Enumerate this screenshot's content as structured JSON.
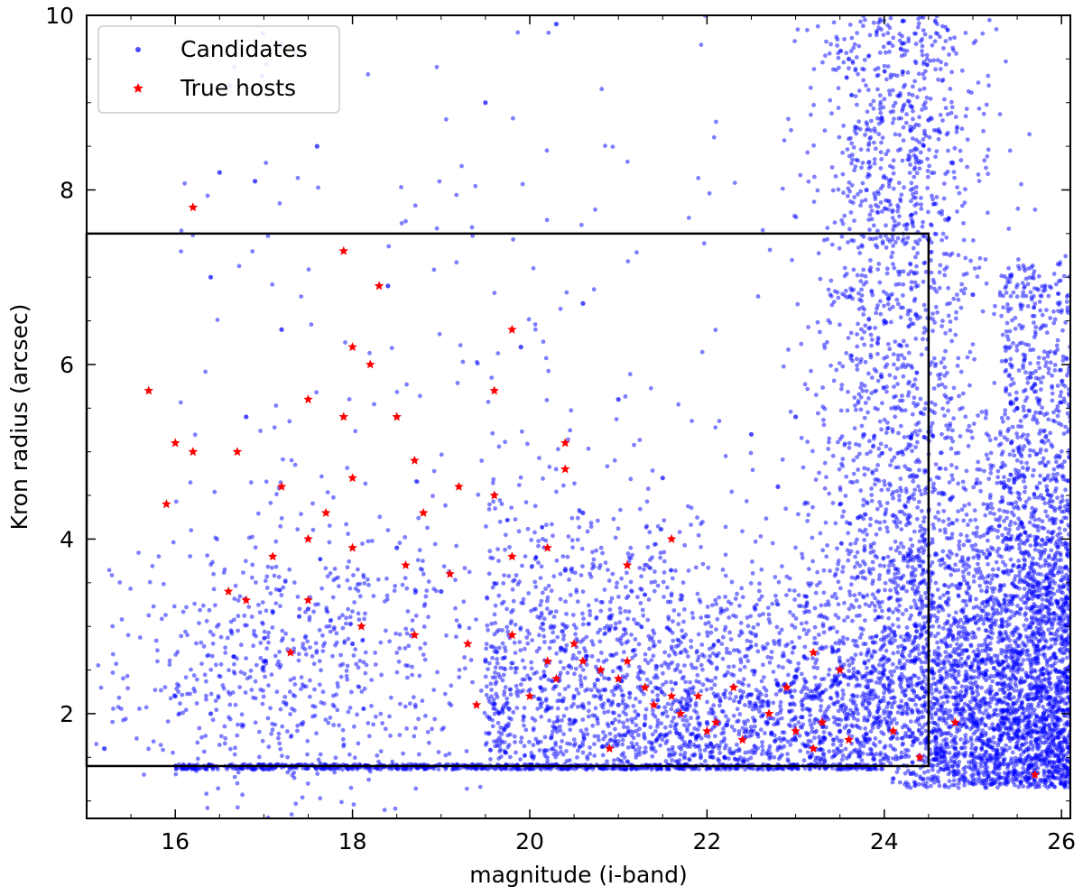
{
  "chart_data": {
    "type": "scatter",
    "title": "",
    "xlabel": "magnitude (i-band)",
    "ylabel": "Kron radius (arcsec)",
    "xlim": [
      15.0,
      26.1
    ],
    "ylim": [
      0.8,
      10.0
    ],
    "xticks": [
      16,
      18,
      20,
      22,
      24,
      26
    ],
    "yticks": [
      2,
      4,
      6,
      8,
      10
    ],
    "grid": false,
    "legend_position": "upper-left",
    "selection_box": {
      "x": [
        15.0,
        24.5
      ],
      "y": [
        1.4,
        7.5
      ]
    },
    "series": [
      {
        "name": "Candidates",
        "marker": "circle",
        "color": "#0000ff",
        "points": [
          [
            16.2,
            1.38
          ],
          [
            18.0,
            1.37
          ],
          [
            20.0,
            1.38
          ],
          [
            22.0,
            1.4
          ],
          [
            23.5,
            1.42
          ],
          [
            16.0,
            2.2
          ],
          [
            16.4,
            2.0
          ],
          [
            17.0,
            2.6
          ],
          [
            17.5,
            3.2
          ],
          [
            18.0,
            2.8
          ],
          [
            18.5,
            3.9
          ],
          [
            19.0,
            3.4
          ],
          [
            19.5,
            2.6
          ],
          [
            20.0,
            2.4
          ],
          [
            20.5,
            2.2
          ],
          [
            21.0,
            2.1
          ],
          [
            21.5,
            2.0
          ],
          [
            22.0,
            1.9
          ],
          [
            22.5,
            1.8
          ],
          [
            23.0,
            1.7
          ],
          [
            23.5,
            1.8
          ],
          [
            24.0,
            2.5
          ],
          [
            24.3,
            3.5
          ],
          [
            24.2,
            5.0
          ],
          [
            24.0,
            6.5
          ],
          [
            23.8,
            8.0
          ],
          [
            23.6,
            9.5
          ],
          [
            24.5,
            8.8
          ],
          [
            25.0,
            6.8
          ],
          [
            25.5,
            5.5
          ],
          [
            26.0,
            4.2
          ],
          [
            25.2,
            3.0
          ],
          [
            25.8,
            2.0
          ],
          [
            26.0,
            1.2
          ],
          [
            24.8,
            1.6
          ],
          [
            15.2,
            1.6
          ],
          [
            16.5,
            8.2
          ],
          [
            16.9,
            8.1
          ],
          [
            17.6,
            8.5
          ],
          [
            19.5,
            9.0
          ],
          [
            20.3,
            9.9
          ],
          [
            17.2,
            6.4
          ],
          [
            18.4,
            6.9
          ],
          [
            19.9,
            6.2
          ],
          [
            20.6,
            6.7
          ],
          [
            21.0,
            5.6
          ],
          [
            22.5,
            5.2
          ],
          [
            23.0,
            5.4
          ],
          [
            22.8,
            4.6
          ],
          [
            21.5,
            4.7
          ],
          [
            20.6,
            4.3
          ],
          [
            16.4,
            7.0
          ],
          [
            16.8,
            5.4
          ]
        ]
      },
      {
        "name": "True hosts",
        "marker": "star",
        "color": "#ff0000",
        "points": [
          [
            16.2,
            7.8
          ],
          [
            17.9,
            7.3
          ],
          [
            18.3,
            6.9
          ],
          [
            19.8,
            6.4
          ],
          [
            18.0,
            6.2
          ],
          [
            18.2,
            6.0
          ],
          [
            15.7,
            5.7
          ],
          [
            19.6,
            5.7
          ],
          [
            17.5,
            5.6
          ],
          [
            17.9,
            5.4
          ],
          [
            18.5,
            5.4
          ],
          [
            16.0,
            5.1
          ],
          [
            16.2,
            5.0
          ],
          [
            16.7,
            5.0
          ],
          [
            15.9,
            4.4
          ],
          [
            20.4,
            5.1
          ],
          [
            20.4,
            4.8
          ],
          [
            18.0,
            4.7
          ],
          [
            17.2,
            4.6
          ],
          [
            18.7,
            4.9
          ],
          [
            19.2,
            4.6
          ],
          [
            17.7,
            4.3
          ],
          [
            18.8,
            4.3
          ],
          [
            19.6,
            4.5
          ],
          [
            17.5,
            4.0
          ],
          [
            17.1,
            3.8
          ],
          [
            18.0,
            3.9
          ],
          [
            18.6,
            3.7
          ],
          [
            19.1,
            3.6
          ],
          [
            19.8,
            3.8
          ],
          [
            20.2,
            3.9
          ],
          [
            21.1,
            3.7
          ],
          [
            21.6,
            4.0
          ],
          [
            17.5,
            3.3
          ],
          [
            16.6,
            3.4
          ],
          [
            16.8,
            3.3
          ],
          [
            17.3,
            2.7
          ],
          [
            18.1,
            3.0
          ],
          [
            18.7,
            2.9
          ],
          [
            19.3,
            2.8
          ],
          [
            19.8,
            2.9
          ],
          [
            20.2,
            2.6
          ],
          [
            20.5,
            2.8
          ],
          [
            20.8,
            2.5
          ],
          [
            21.0,
            2.4
          ],
          [
            21.3,
            2.3
          ],
          [
            21.6,
            2.2
          ],
          [
            21.9,
            2.2
          ],
          [
            20.3,
            2.4
          ],
          [
            20.6,
            2.6
          ],
          [
            21.1,
            2.6
          ],
          [
            21.4,
            2.1
          ],
          [
            21.7,
            2.0
          ],
          [
            22.1,
            1.9
          ],
          [
            22.3,
            2.3
          ],
          [
            22.7,
            2.0
          ],
          [
            23.0,
            1.8
          ],
          [
            23.3,
            1.9
          ],
          [
            23.6,
            1.7
          ],
          [
            24.1,
            1.8
          ],
          [
            24.4,
            1.5
          ],
          [
            24.8,
            1.9
          ],
          [
            22.0,
            1.8
          ],
          [
            22.4,
            1.7
          ],
          [
            23.2,
            1.6
          ],
          [
            25.7,
            1.3
          ],
          [
            23.2,
            2.7
          ],
          [
            23.5,
            2.5
          ],
          [
            22.9,
            2.3
          ],
          [
            19.4,
            2.1
          ],
          [
            20.0,
            2.2
          ],
          [
            20.9,
            1.6
          ]
        ]
      }
    ]
  }
}
